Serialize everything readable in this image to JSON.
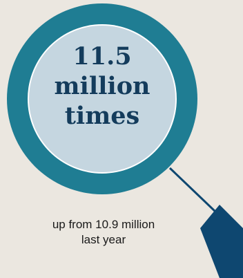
{
  "headline": {
    "line1": "11.5",
    "line2": "million",
    "line3": "times"
  },
  "subtitle": {
    "line1": "up from 10.9 million",
    "line2": "last year"
  },
  "colors": {
    "background": "#ebe7e0",
    "ring": "#1f7d93",
    "lens": "#c5d6e0",
    "handle": "#0e4770",
    "text_dark": "#143c5c"
  },
  "icons": {
    "graphic": "magnifying-glass-icon"
  }
}
